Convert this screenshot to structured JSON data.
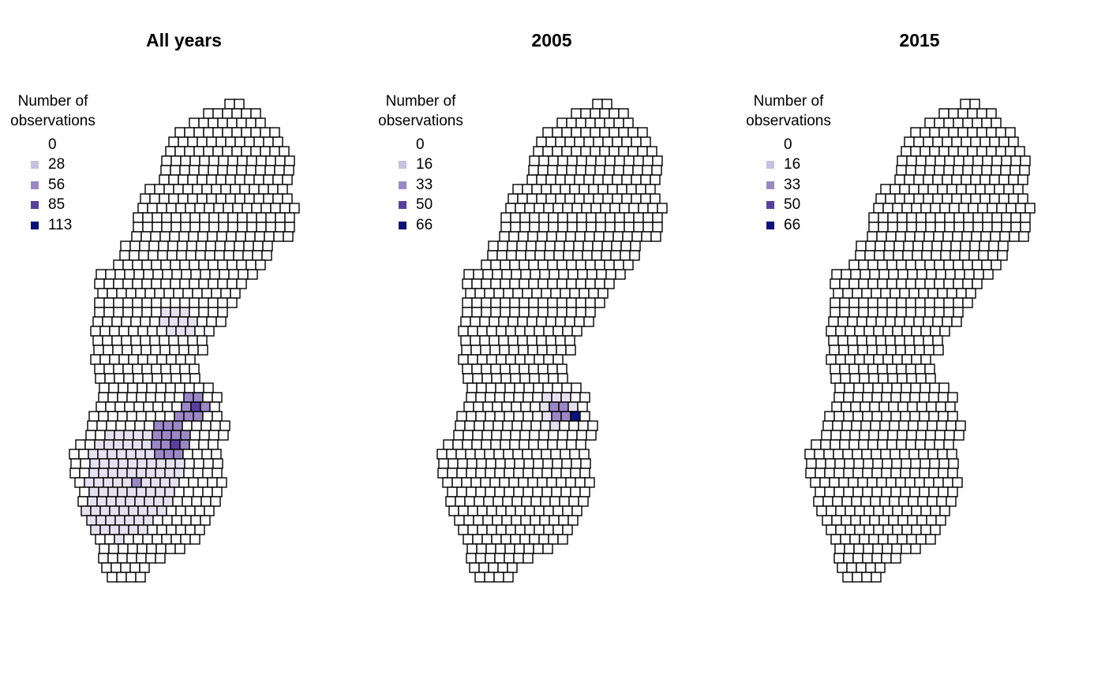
{
  "panels": [
    {
      "title": "All years",
      "legend": {
        "title_line1": "Number of",
        "title_line2": "observations",
        "labels": [
          "0",
          "28",
          "56",
          "85",
          "113"
        ]
      }
    },
    {
      "title": "2005",
      "legend": {
        "title_line1": "Number of",
        "title_line2": "observations",
        "labels": [
          "0",
          "16",
          "33",
          "50",
          "66"
        ]
      }
    },
    {
      "title": "2015",
      "legend": {
        "title_line1": "Number of",
        "title_line2": "observations",
        "labels": [
          "0",
          "16",
          "33",
          "50",
          "66"
        ]
      }
    }
  ],
  "colors": {
    "scale": [
      "#ffffff",
      "#c9bfe0",
      "#9b87c5",
      "#5a3f9e",
      "#0c127a"
    ],
    "light": "#e6e1f0",
    "grid_stroke": "#000000"
  },
  "map": {
    "region": "Sweden",
    "grid": "square cells"
  }
}
